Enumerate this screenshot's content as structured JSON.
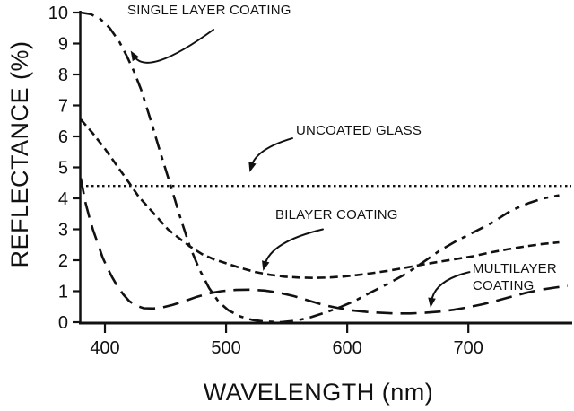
{
  "chart_data": {
    "type": "line",
    "title": "",
    "xlabel": "WAVELENGTH (nm)",
    "ylabel": "REFLECTANCE (%)",
    "xlim": [
      380,
      785
    ],
    "ylim": [
      0,
      10
    ],
    "x_ticks": [
      400,
      500,
      600,
      700
    ],
    "y_ticks": [
      0,
      1,
      2,
      3,
      4,
      5,
      6,
      7,
      8,
      9,
      10
    ],
    "grid": false,
    "legend_position": "inline-annotations",
    "ink_color": "#111111",
    "background_color": "#ffffff",
    "series": [
      {
        "name": "SINGLE LAYER COATING",
        "style": "dash-dot",
        "points": [
          [
            380,
            10
          ],
          [
            388,
            9.95
          ],
          [
            396,
            9.8
          ],
          [
            404,
            9.5
          ],
          [
            412,
            9.05
          ],
          [
            418,
            8.6
          ],
          [
            424,
            8.1
          ],
          [
            430,
            7.5
          ],
          [
            438,
            6.5
          ],
          [
            446,
            5.45
          ],
          [
            454,
            4.45
          ],
          [
            462,
            3.4
          ],
          [
            470,
            2.45
          ],
          [
            478,
            1.7
          ],
          [
            486,
            1.1
          ],
          [
            494,
            0.65
          ],
          [
            502,
            0.38
          ],
          [
            512,
            0.18
          ],
          [
            522,
            0.07
          ],
          [
            532,
            0.02
          ],
          [
            545,
            0
          ],
          [
            558,
            0.05
          ],
          [
            570,
            0.16
          ],
          [
            582,
            0.31
          ],
          [
            594,
            0.48
          ],
          [
            606,
            0.68
          ],
          [
            620,
            0.97
          ],
          [
            634,
            1.25
          ],
          [
            648,
            1.55
          ],
          [
            662,
            1.92
          ],
          [
            676,
            2.3
          ],
          [
            690,
            2.62
          ],
          [
            705,
            2.92
          ],
          [
            720,
            3.22
          ],
          [
            735,
            3.6
          ],
          [
            750,
            3.85
          ],
          [
            762,
            4.0
          ],
          [
            775,
            4.1
          ]
        ]
      },
      {
        "name": "UNCOATED GLASS",
        "style": "dotted",
        "points": [
          [
            380,
            4.4
          ],
          [
            785,
            4.4
          ]
        ]
      },
      {
        "name": "BILAYER COATING",
        "style": "dashed",
        "points": [
          [
            380,
            6.55
          ],
          [
            390,
            6.1
          ],
          [
            400,
            5.6
          ],
          [
            410,
            5.05
          ],
          [
            420,
            4.5
          ],
          [
            428,
            4.05
          ],
          [
            436,
            3.7
          ],
          [
            444,
            3.35
          ],
          [
            452,
            3.0
          ],
          [
            460,
            2.75
          ],
          [
            470,
            2.45
          ],
          [
            480,
            2.2
          ],
          [
            490,
            2.03
          ],
          [
            500,
            1.9
          ],
          [
            512,
            1.75
          ],
          [
            524,
            1.62
          ],
          [
            536,
            1.53
          ],
          [
            548,
            1.47
          ],
          [
            560,
            1.44
          ],
          [
            572,
            1.43
          ],
          [
            584,
            1.44
          ],
          [
            596,
            1.47
          ],
          [
            608,
            1.52
          ],
          [
            620,
            1.58
          ],
          [
            634,
            1.66
          ],
          [
            648,
            1.76
          ],
          [
            662,
            1.86
          ],
          [
            676,
            1.95
          ],
          [
            690,
            2.04
          ],
          [
            704,
            2.13
          ],
          [
            718,
            2.25
          ],
          [
            732,
            2.35
          ],
          [
            746,
            2.44
          ],
          [
            760,
            2.52
          ],
          [
            775,
            2.58
          ]
        ]
      },
      {
        "name": "MULTILAYER COATING",
        "style": "long-dash",
        "points": [
          [
            380,
            4.65
          ],
          [
            382,
            4.25
          ],
          [
            384,
            3.85
          ],
          [
            387,
            3.4
          ],
          [
            390,
            3.0
          ],
          [
            394,
            2.55
          ],
          [
            398,
            2.1
          ],
          [
            402,
            1.75
          ],
          [
            406,
            1.45
          ],
          [
            410,
            1.18
          ],
          [
            415,
            0.9
          ],
          [
            420,
            0.68
          ],
          [
            426,
            0.53
          ],
          [
            432,
            0.45
          ],
          [
            440,
            0.44
          ],
          [
            448,
            0.48
          ],
          [
            456,
            0.56
          ],
          [
            466,
            0.68
          ],
          [
            476,
            0.82
          ],
          [
            486,
            0.93
          ],
          [
            496,
            1.0
          ],
          [
            508,
            1.04
          ],
          [
            520,
            1.05
          ],
          [
            532,
            1.02
          ],
          [
            544,
            0.95
          ],
          [
            556,
            0.84
          ],
          [
            568,
            0.7
          ],
          [
            580,
            0.56
          ],
          [
            592,
            0.46
          ],
          [
            604,
            0.38
          ],
          [
            616,
            0.33
          ],
          [
            628,
            0.3
          ],
          [
            640,
            0.28
          ],
          [
            652,
            0.28
          ],
          [
            664,
            0.3
          ],
          [
            676,
            0.34
          ],
          [
            688,
            0.4
          ],
          [
            700,
            0.48
          ],
          [
            712,
            0.58
          ],
          [
            724,
            0.7
          ],
          [
            736,
            0.83
          ],
          [
            748,
            0.95
          ],
          [
            760,
            1.05
          ],
          [
            772,
            1.12
          ],
          [
            782,
            1.17
          ]
        ]
      }
    ],
    "annotations": [
      {
        "text": [
          "SINGLE LAYER COATING"
        ],
        "anchor": [
          418.5,
          10.32
        ],
        "arrow": {
          "from": [
            489.6,
            9.45
          ],
          "ctrl": [
            435,
            7.9
          ],
          "to": [
            422,
            8.72
          ]
        }
      },
      {
        "text": [
          "UNCOATED GLASS"
        ],
        "anchor": [
          557.7,
          6.43
        ],
        "arrow": {
          "from": [
            554.7,
            5.94
          ],
          "ctrl": [
            525.1,
            5.6
          ],
          "to": [
            519.9,
            4.9
          ]
        }
      },
      {
        "text": [
          "BILAYER COATING"
        ],
        "anchor": [
          540.7,
          3.71
        ],
        "arrow": {
          "from": [
            579.9,
            3.0
          ],
          "ctrl": [
            536.9,
            2.6
          ],
          "to": [
            531.0,
            1.71
          ]
        }
      },
      {
        "text": [
          "MULTILAYER",
          "COATING"
        ],
        "anchor": [
          703.5,
          1.97
        ],
        "arrow": {
          "from": [
            701.0,
            1.62
          ],
          "ctrl": [
            672.0,
            1.35
          ],
          "to": [
            669.0,
            0.52
          ]
        }
      }
    ]
  }
}
